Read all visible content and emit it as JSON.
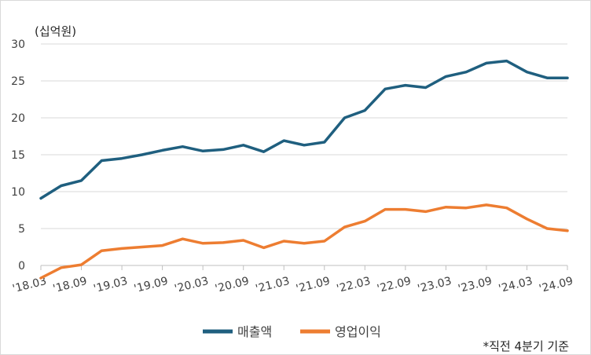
{
  "chart_data": {
    "type": "line",
    "unit_label": "(십억원)",
    "note": "*직전 4분기 기준",
    "ylim": [
      0,
      30
    ],
    "y_ticks": [
      "0",
      "5",
      "10",
      "15",
      "20",
      "25",
      "30"
    ],
    "x_tick_labels": [
      "'18.03",
      "'18.09",
      "'19.03",
      "'19.09",
      "'20.03",
      "'20.09",
      "'21.03",
      "'21.09",
      "'22.03",
      "'22.09",
      "'23.03",
      "'23.09",
      "'24.03",
      "'24.09"
    ],
    "x": [
      "'18.03",
      "'18.06",
      "'18.09",
      "'18.12",
      "'19.03",
      "'19.06",
      "'19.09",
      "'19.12",
      "'20.03",
      "'20.06",
      "'20.09",
      "'20.12",
      "'21.03",
      "'21.06",
      "'21.09",
      "'21.12",
      "'22.03",
      "'22.06",
      "'22.09",
      "'22.12",
      "'23.03",
      "'23.06",
      "'23.09",
      "'23.12",
      "'24.03",
      "'24.06",
      "'24.09"
    ],
    "grid": true,
    "legend_position": "bottom",
    "series": [
      {
        "name": "매출액",
        "color": "#1f5f7f",
        "values": [
          9.1,
          10.8,
          11.5,
          14.2,
          14.5,
          15.0,
          15.6,
          16.1,
          15.5,
          15.7,
          16.3,
          15.4,
          16.9,
          16.3,
          16.7,
          20.0,
          21.0,
          23.9,
          24.4,
          24.1,
          25.6,
          26.2,
          27.4,
          27.7,
          26.2,
          25.4,
          25.4
        ]
      },
      {
        "name": "영업이익",
        "color": "#ed7d31",
        "values": [
          -1.7,
          -0.3,
          0.1,
          2.0,
          2.3,
          2.5,
          2.7,
          3.6,
          3.0,
          3.1,
          3.4,
          2.4,
          3.3,
          3.0,
          3.3,
          5.2,
          6.0,
          7.6,
          7.6,
          7.3,
          7.9,
          7.8,
          8.2,
          7.8,
          6.3,
          5.0,
          4.7
        ]
      }
    ]
  }
}
